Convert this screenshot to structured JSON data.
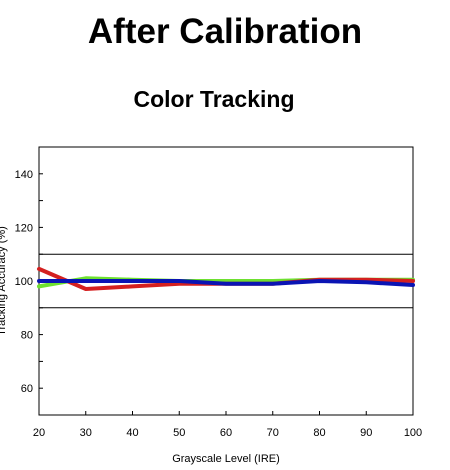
{
  "page": {
    "title": "After Calibration",
    "subtitle": "Color Tracking"
  },
  "chart_data": {
    "type": "line",
    "xlabel": "Grayscale Level (IRE)",
    "ylabel": "Tracking Accuracy (%)",
    "x": [
      20,
      30,
      40,
      50,
      60,
      70,
      80,
      90,
      100
    ],
    "xlim": [
      20,
      100
    ],
    "ylim": [
      50,
      150
    ],
    "xticks": [
      20,
      30,
      40,
      50,
      60,
      70,
      80,
      90,
      100
    ],
    "yticks": [
      60,
      80,
      100,
      120,
      140
    ],
    "reference_lines": [
      90,
      110
    ],
    "grid": false,
    "series": [
      {
        "color": "#6ee030",
        "values": [
          98,
          101,
          100.5,
          100,
          100,
          100,
          100.5,
          100.5,
          100.5
        ]
      },
      {
        "color": "#d42020",
        "values": [
          104.5,
          97,
          98,
          99,
          99,
          99,
          100.5,
          100.5,
          100
        ]
      },
      {
        "color": "#0a14b4",
        "values": [
          100,
          100,
          100,
          100,
          99,
          99,
          100,
          99.5,
          98.5
        ]
      }
    ]
  }
}
